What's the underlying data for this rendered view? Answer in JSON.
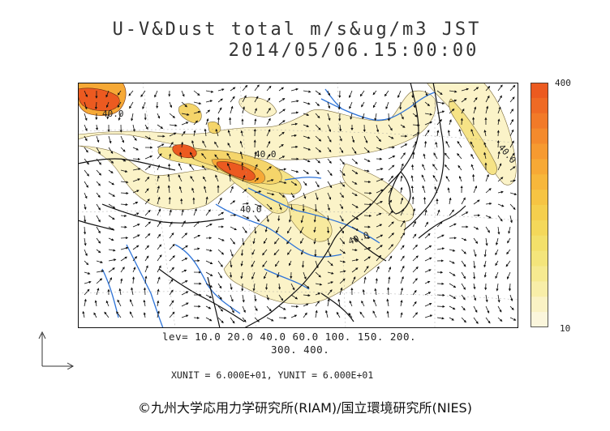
{
  "header": {
    "title_line1": "U-V&Dust total m/s&ug/m3 JST",
    "title_line2": "2014/05/06.15:00:00"
  },
  "colorbar": {
    "max_label": "400",
    "min_label": "10",
    "colors": [
      "#fbf6dc",
      "#faf2c4",
      "#f8eea8",
      "#f6ea90",
      "#f4e57b",
      "#f3e06a",
      "#f4d85a",
      "#f5cf4d",
      "#f6c443",
      "#f7b73b",
      "#f7a935",
      "#f69a30",
      "#f48a2c",
      "#f27a28",
      "#ef6a24",
      "#ec5a20"
    ]
  },
  "contours": {
    "levels_line1": "lev= 10.0 20.0 40.0 60.0 100. 150. 200.",
    "levels_line2": "300. 400.",
    "map_labels": [
      "40.0",
      "40.0",
      "40.0",
      "40.0",
      "40.0"
    ]
  },
  "units": {
    "text": "XUNIT = 6.000E+01, YUNIT = 6.000E+01"
  },
  "footer": {
    "copyright": "©九州大学応用力学研究所(RIAM)/国立環境研究所(NIES)"
  },
  "theme": {
    "coast_color": "#111111",
    "river_color": "#2d73d8",
    "dust_low": "#fbf3c8",
    "dust_mid": "#f5d56a",
    "dust_high": "#ec5a20"
  }
}
